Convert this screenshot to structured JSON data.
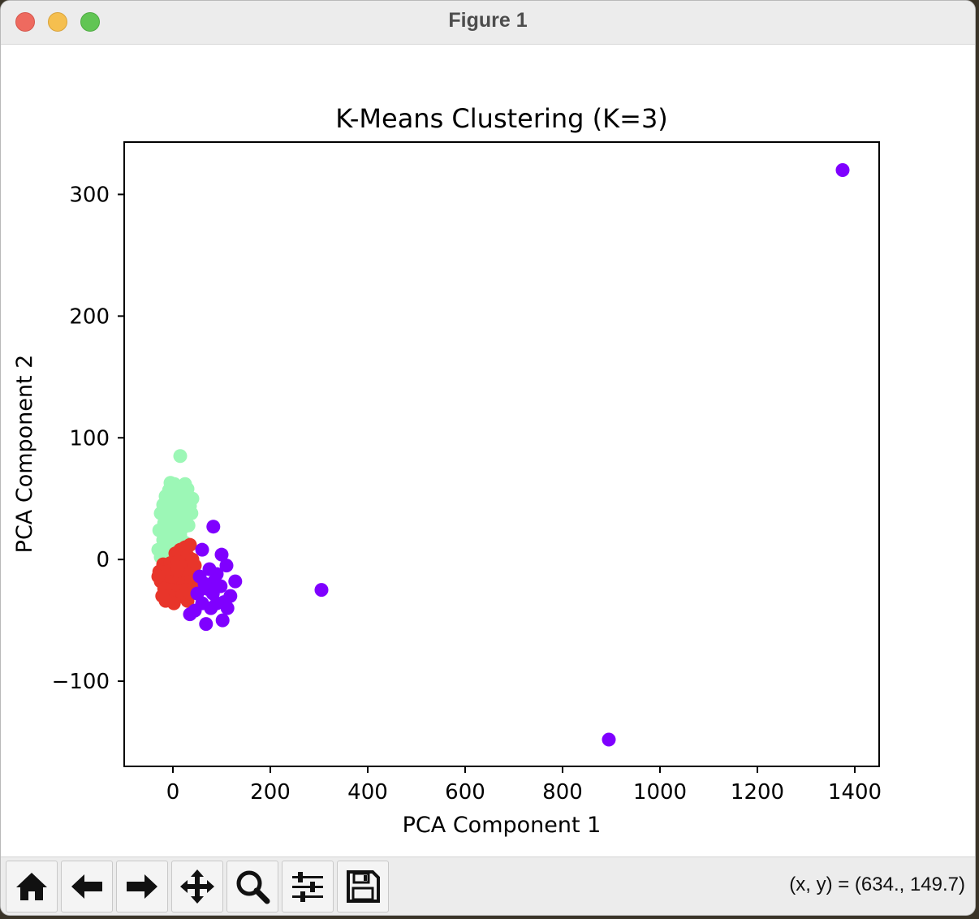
{
  "window": {
    "title": "Figure 1"
  },
  "toolbar": {
    "buttons": [
      {
        "name": "home",
        "icon": "home-icon"
      },
      {
        "name": "back",
        "icon": "arrow-left-icon"
      },
      {
        "name": "forward",
        "icon": "arrow-right-icon"
      },
      {
        "name": "pan",
        "icon": "move-icon"
      },
      {
        "name": "zoom",
        "icon": "magnifier-icon"
      },
      {
        "name": "configure-subplots",
        "icon": "sliders-icon"
      },
      {
        "name": "save",
        "icon": "floppy-disk-icon"
      }
    ],
    "coord_readout": "(x, y) = (634., 149.7)"
  },
  "chart_data": {
    "type": "scatter",
    "title": "K-Means Clustering (K=3)",
    "xlabel": "PCA Component 1",
    "ylabel": "PCA Component 2",
    "xlim": [
      -100,
      1450
    ],
    "ylim": [
      -170,
      343
    ],
    "xticks": [
      0,
      200,
      400,
      600,
      800,
      1000,
      1200,
      1400
    ],
    "xtick_labels": [
      "0",
      "200",
      "400",
      "600",
      "800",
      "1000",
      "1200",
      "1400"
    ],
    "yticks": [
      -100,
      0,
      100,
      200,
      300
    ],
    "ytick_labels": [
      "−100",
      "0",
      "100",
      "200",
      "300"
    ],
    "grid": false,
    "colors": {
      "cluster_0": "#7f00ff",
      "cluster_1": "#9cf7b6",
      "cluster_2": "#e8352a"
    },
    "series": [
      {
        "color_key": "cluster_1",
        "points": [
          [
            15,
            85
          ],
          [
            -5,
            63
          ],
          [
            3,
            62
          ],
          [
            10,
            60
          ],
          [
            25,
            62
          ],
          [
            30,
            58
          ],
          [
            -8,
            57
          ],
          [
            12,
            56
          ],
          [
            20,
            55
          ],
          [
            40,
            50
          ],
          [
            -15,
            52
          ],
          [
            5,
            50
          ],
          [
            18,
            48
          ],
          [
            28,
            47
          ],
          [
            35,
            44
          ],
          [
            -20,
            45
          ],
          [
            -2,
            44
          ],
          [
            8,
            42
          ],
          [
            22,
            40
          ],
          [
            38,
            38
          ],
          [
            -25,
            38
          ],
          [
            -10,
            36
          ],
          [
            0,
            35
          ],
          [
            14,
            34
          ],
          [
            26,
            32
          ],
          [
            -18,
            30
          ],
          [
            -5,
            28
          ],
          [
            6,
            27
          ],
          [
            20,
            26
          ],
          [
            32,
            28
          ],
          [
            -28,
            24
          ],
          [
            -12,
            22
          ],
          [
            2,
            21
          ],
          [
            15,
            20
          ],
          [
            -20,
            16
          ],
          [
            -6,
            14
          ],
          [
            8,
            13
          ],
          [
            24,
            14
          ],
          [
            -30,
            8
          ],
          [
            -15,
            6
          ],
          [
            0,
            7
          ],
          [
            12,
            6
          ],
          [
            -25,
            2
          ],
          [
            -8,
            0
          ],
          [
            5,
            40
          ],
          [
            -3,
            48
          ],
          [
            10,
            30
          ],
          [
            16,
            46
          ],
          [
            -14,
            26
          ]
        ]
      },
      {
        "color_key": "cluster_2",
        "points": [
          [
            35,
            12
          ],
          [
            25,
            10
          ],
          [
            15,
            8
          ],
          [
            5,
            5
          ],
          [
            30,
            3
          ],
          [
            40,
            0
          ],
          [
            -20,
            -4
          ],
          [
            -5,
            -3
          ],
          [
            10,
            -2
          ],
          [
            20,
            -6
          ],
          [
            45,
            -5
          ],
          [
            -28,
            -10
          ],
          [
            -12,
            -10
          ],
          [
            0,
            -12
          ],
          [
            15,
            -14
          ],
          [
            30,
            -12
          ],
          [
            -25,
            -18
          ],
          [
            -10,
            -18
          ],
          [
            5,
            -20
          ],
          [
            22,
            -20
          ],
          [
            38,
            -18
          ],
          [
            -18,
            -24
          ],
          [
            -3,
            -25
          ],
          [
            12,
            -26
          ],
          [
            28,
            -25
          ],
          [
            -8,
            -30
          ],
          [
            6,
            -32
          ],
          [
            20,
            -30
          ],
          [
            -15,
            -34
          ],
          [
            2,
            -36
          ],
          [
            30,
            -34
          ],
          [
            45,
            -25
          ],
          [
            -30,
            -14
          ],
          [
            -22,
            -30
          ],
          [
            10,
            -8
          ],
          [
            35,
            -28
          ]
        ]
      },
      {
        "color_key": "cluster_0",
        "points": [
          [
            83,
            27
          ],
          [
            60,
            8
          ],
          [
            100,
            4
          ],
          [
            110,
            -5
          ],
          [
            75,
            -8
          ],
          [
            90,
            -12
          ],
          [
            55,
            -14
          ],
          [
            128,
            -18
          ],
          [
            98,
            -22
          ],
          [
            70,
            -24
          ],
          [
            82,
            -28
          ],
          [
            118,
            -30
          ],
          [
            105,
            -35
          ],
          [
            60,
            -36
          ],
          [
            78,
            -40
          ],
          [
            112,
            -40
          ],
          [
            45,
            -42
          ],
          [
            35,
            -45
          ],
          [
            102,
            -50
          ],
          [
            68,
            -53
          ],
          [
            90,
            -36
          ],
          [
            50,
            -28
          ],
          [
            85,
            -18
          ],
          [
            65,
            -20
          ],
          [
            305,
            -25
          ],
          [
            895,
            -148
          ],
          [
            1375,
            320
          ]
        ]
      }
    ]
  }
}
